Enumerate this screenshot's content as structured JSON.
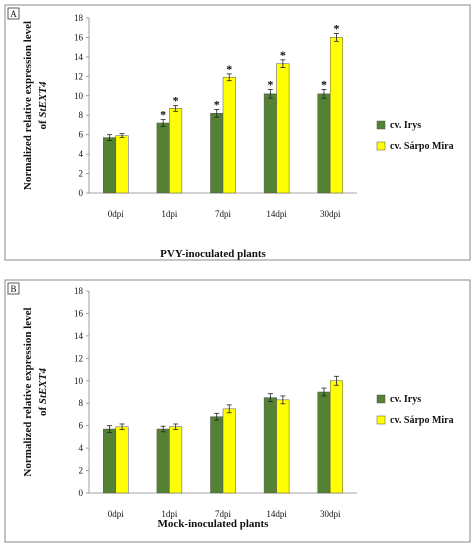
{
  "chart_data": [
    {
      "panel_tag": "A",
      "type": "bar",
      "categories": [
        "0dpi",
        "1dpi",
        "7dpi",
        "14dpi",
        "30dpi"
      ],
      "series": [
        {
          "name": "cv. Irys",
          "color": "#548235",
          "values": [
            5.7,
            7.2,
            8.2,
            10.2,
            10.2
          ],
          "errors": [
            0.3,
            0.35,
            0.4,
            0.45,
            0.45
          ],
          "significance": [
            "",
            "*",
            "*",
            "*",
            "*"
          ]
        },
        {
          "name": "cv. Sárpo Mira",
          "color": "#ffff00",
          "values": [
            5.9,
            8.7,
            11.9,
            13.3,
            16.0
          ],
          "errors": [
            0.2,
            0.3,
            0.35,
            0.4,
            0.4
          ],
          "significance": [
            "",
            "*",
            "*",
            "*",
            "*"
          ]
        }
      ],
      "ylim": [
        0,
        18
      ],
      "yticks": [
        "0",
        "2",
        "4",
        "6",
        "8",
        "10",
        "12",
        "14",
        "16",
        "18"
      ],
      "ylabel_line1": "Normalized  relative expression level",
      "ylabel_line2_prefix": "of ",
      "ylabel_line2_gene": "StEXT4",
      "xlabel": "PVY-inoculated plants",
      "legend_position": "right"
    },
    {
      "panel_tag": "B",
      "type": "bar",
      "categories": [
        "0dpi",
        "1dpi",
        "7dpi",
        "14dpi",
        "30dpi"
      ],
      "series": [
        {
          "name": "cv. Irys",
          "color": "#548235",
          "values": [
            5.7,
            5.7,
            6.8,
            8.5,
            9.0
          ],
          "errors": [
            0.3,
            0.25,
            0.3,
            0.35,
            0.35
          ],
          "significance": [
            "",
            "",
            "",
            "",
            ""
          ]
        },
        {
          "name": "cv. Sárpo Mira",
          "color": "#ffff00",
          "values": [
            5.9,
            5.9,
            7.5,
            8.3,
            10.0
          ],
          "errors": [
            0.25,
            0.25,
            0.35,
            0.35,
            0.4
          ],
          "significance": [
            "",
            "",
            "",
            "",
            ""
          ]
        }
      ],
      "ylim": [
        0,
        18
      ],
      "yticks": [
        "0",
        "2",
        "4",
        "6",
        "8",
        "10",
        "12",
        "14",
        "16",
        "18"
      ],
      "ylabel_line1": "Normalized  relative expression level",
      "ylabel_line2_prefix": "of ",
      "ylabel_line2_gene": "StEXT4",
      "xlabel": "Mock-inoculated plants",
      "legend_position": "right"
    }
  ]
}
